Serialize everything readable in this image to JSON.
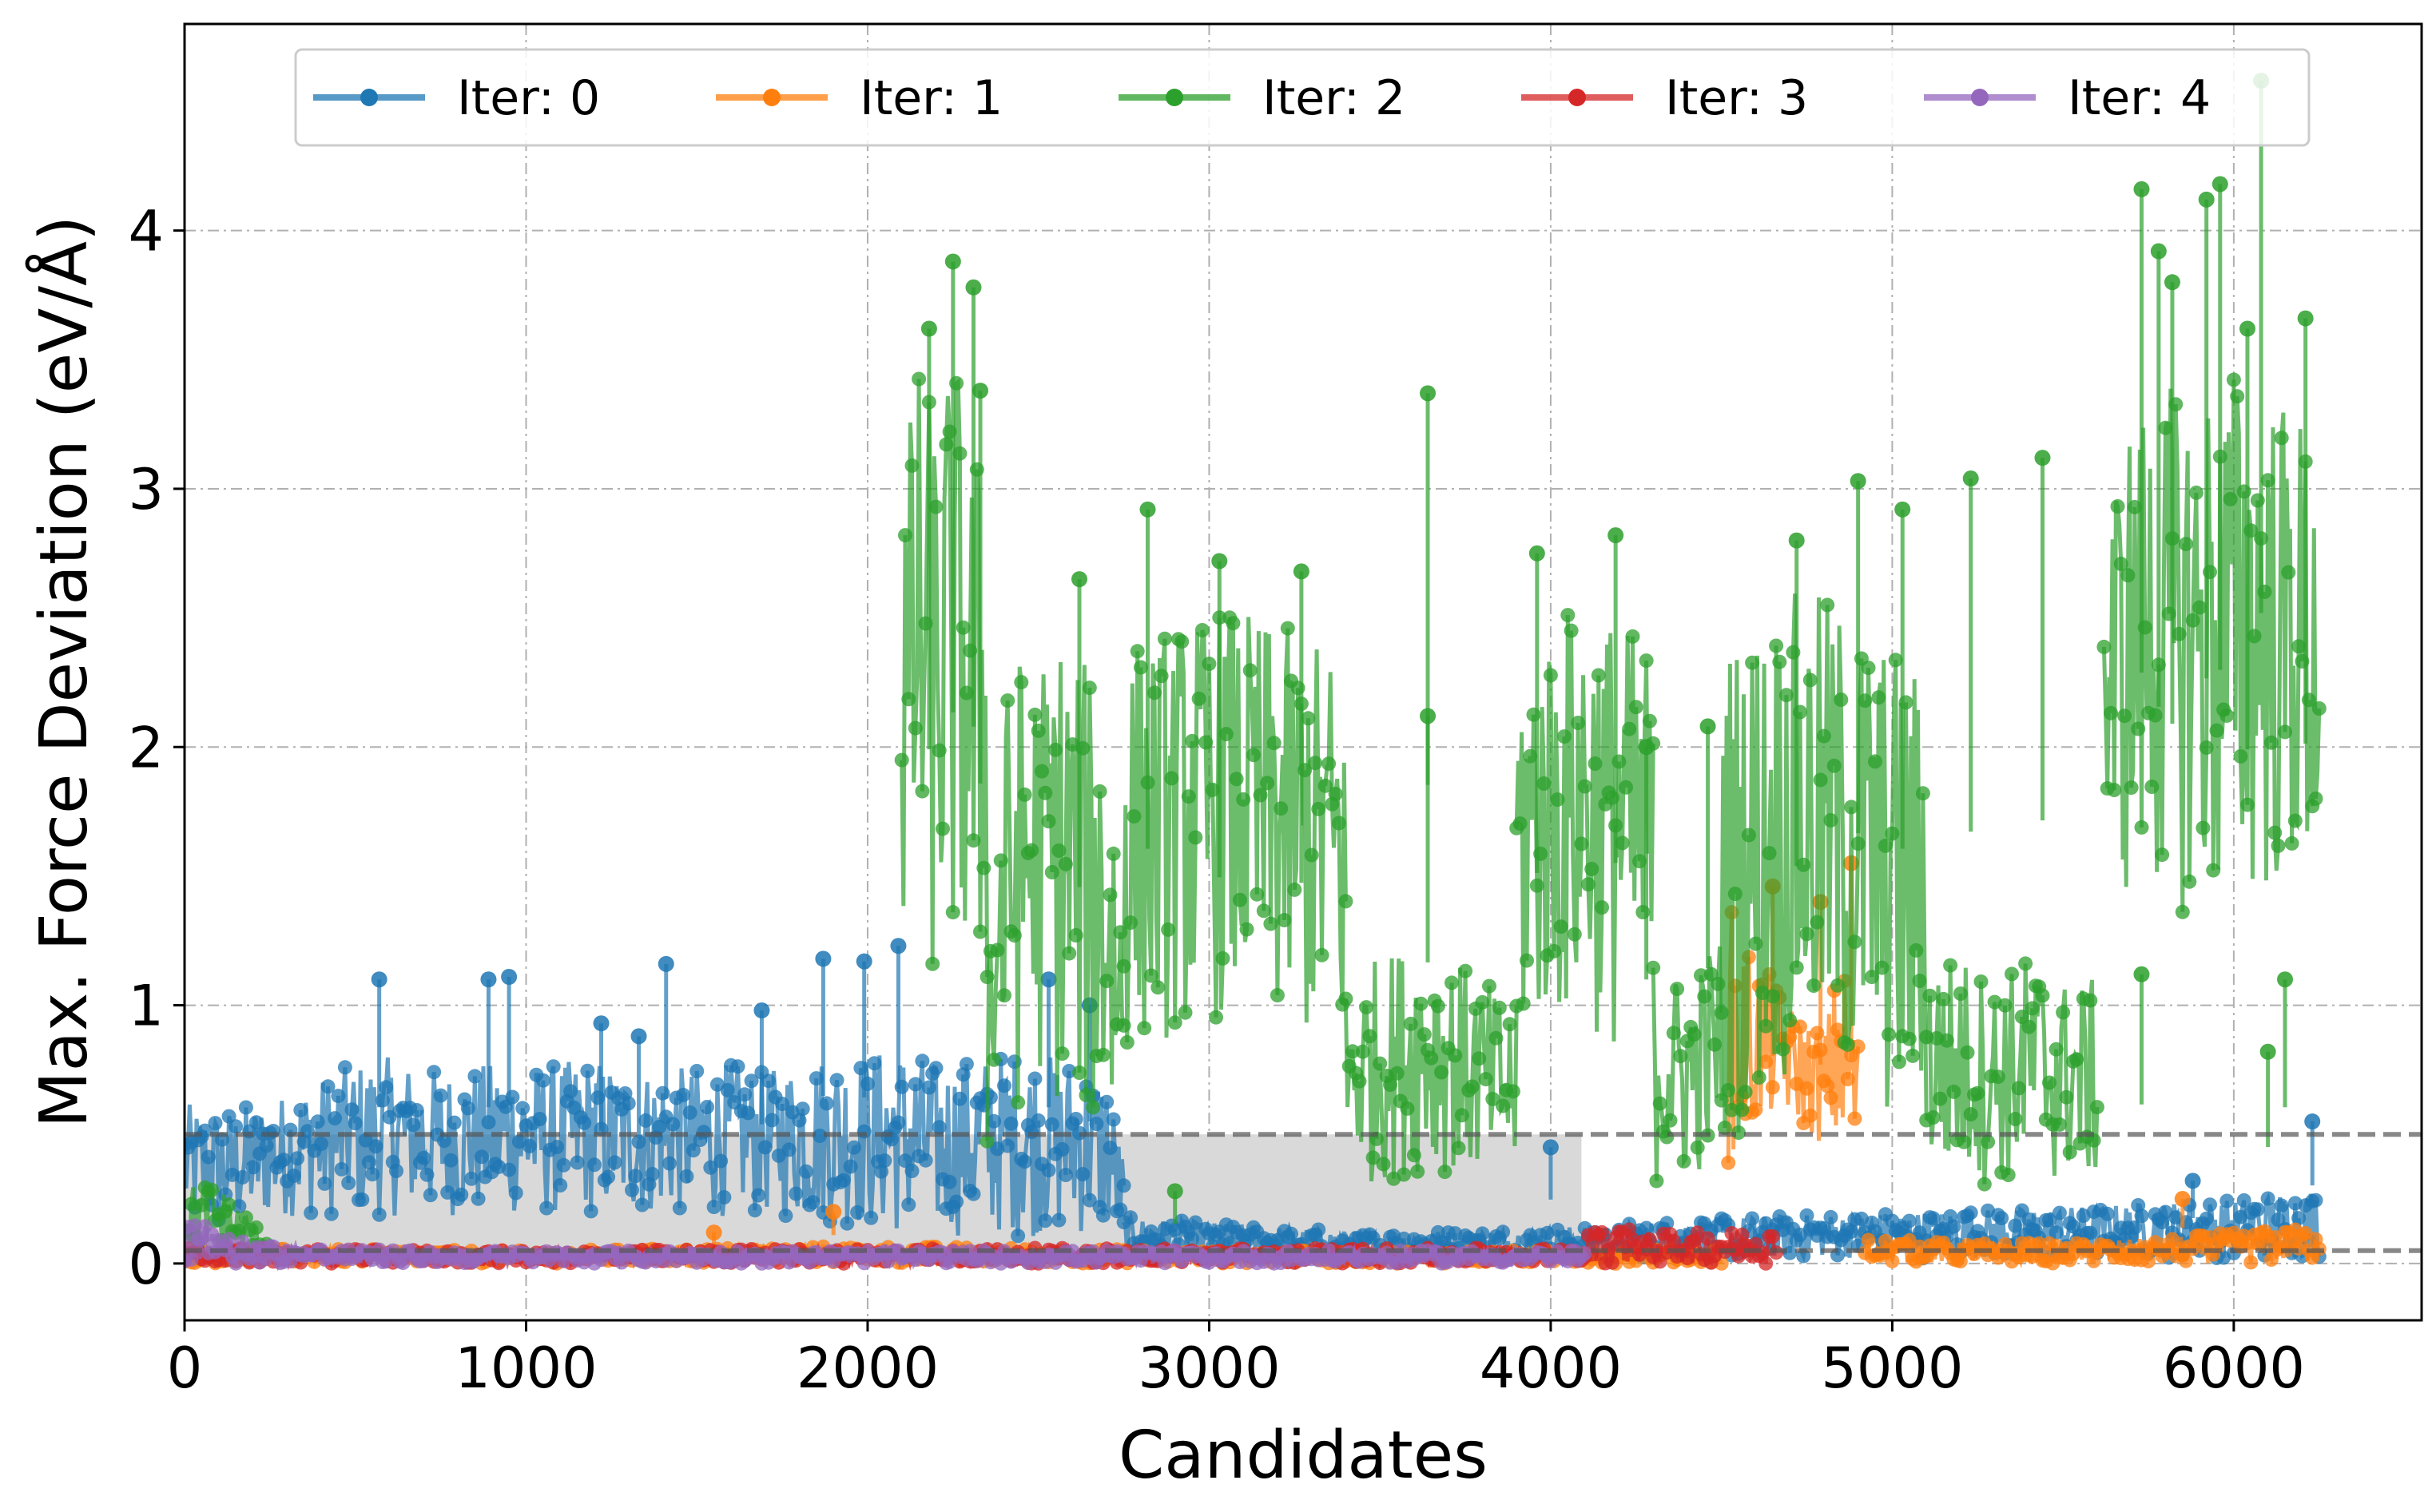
{
  "chart_data": {
    "type": "line",
    "title": "",
    "xlabel": "Candidates",
    "ylabel": "Max. Force Deviation (eV/Å)",
    "xlim": [
      0,
      6550
    ],
    "ylim": [
      -0.22,
      4.8
    ],
    "xticks": [
      0,
      1000,
      2000,
      3000,
      4000,
      5000,
      6000
    ],
    "yticks": [
      0,
      1,
      2,
      3,
      4
    ],
    "grid": true,
    "legend": {
      "placement": "top-center",
      "columns": 5
    },
    "thresholds": [
      {
        "value": 0.5,
        "style": "dashed"
      },
      {
        "value": 0.05,
        "style": "dashed"
      }
    ],
    "series": [
      {
        "name": "Iter: 0",
        "color": "#1f77b4",
        "segments": [
          {
            "x": [
              0,
              100,
              200,
              300,
              400,
              500,
              600,
              700,
              800,
              900,
              1000,
              1100,
              1200,
              1300,
              1400,
              1500,
              1600,
              1700,
              1800,
              1900,
              2000,
              2100,
              2200,
              2300,
              2400,
              2500,
              2600,
              2700,
              2750
            ],
            "high": [
              0.62,
              0.6,
              0.62,
              0.66,
              0.72,
              0.78,
              0.8,
              0.76,
              0.75,
              0.78,
              0.76,
              0.78,
              0.8,
              0.74,
              0.76,
              0.76,
              0.78,
              0.74,
              0.8,
              0.82,
              0.82,
              0.85,
              0.78,
              0.8,
              0.82,
              0.82,
              0.8,
              0.75,
              0.4
            ],
            "low": [
              0.12,
              0.1,
              0.15,
              0.18,
              0.18,
              0.18,
              0.18,
              0.18,
              0.18,
              0.18,
              0.18,
              0.18,
              0.18,
              0.18,
              0.18,
              0.18,
              0.18,
              0.18,
              0.15,
              0.15,
              0.12,
              0.1,
              0.1,
              0.1,
              0.1,
              0.1,
              0.1,
              0.1,
              0.08
            ]
          },
          {
            "x": [
              2750,
              3000,
              3500,
              4000,
              4500,
              5000,
              5500,
              6000,
              6250
            ],
            "high": [
              0.18,
              0.16,
              0.12,
              0.14,
              0.18,
              0.2,
              0.22,
              0.25,
              0.3
            ],
            "low": [
              0.03,
              0.02,
              0.02,
              0.02,
              0.02,
              0.02,
              0.02,
              0.02,
              0.02
            ]
          }
        ],
        "spikes": [
          {
            "x": 570,
            "y": 1.1
          },
          {
            "x": 890,
            "y": 1.1
          },
          {
            "x": 950,
            "y": 1.11
          },
          {
            "x": 1410,
            "y": 1.16
          },
          {
            "x": 1690,
            "y": 0.98
          },
          {
            "x": 1870,
            "y": 1.18
          },
          {
            "x": 1990,
            "y": 1.17
          },
          {
            "x": 2090,
            "y": 1.23
          },
          {
            "x": 2530,
            "y": 1.1
          },
          {
            "x": 2650,
            "y": 1.0
          },
          {
            "x": 1220,
            "y": 0.93
          },
          {
            "x": 1330,
            "y": 0.88
          },
          {
            "x": 4000,
            "y": 0.45
          },
          {
            "x": 6230,
            "y": 0.55
          },
          {
            "x": 5880,
            "y": 0.32
          }
        ]
      },
      {
        "name": "Iter: 1",
        "color": "#ff7f0e",
        "segments": [
          {
            "x": [
              0,
              1000,
              2000,
              3000,
              4000,
              4500
            ],
            "high": [
              0.06,
              0.05,
              0.07,
              0.05,
              0.05,
              0.06
            ],
            "low": [
              0.0,
              0.0,
              0.0,
              0.0,
              0.0,
              0.0
            ]
          },
          {
            "x": [
              4520,
              4560,
              4600,
              4650,
              4700,
              4750,
              4800,
              4850,
              4900
            ],
            "high": [
              1.4,
              1.3,
              1.2,
              1.1,
              1.0,
              0.95,
              0.9,
              1.2,
              0.9
            ],
            "low": [
              0.3,
              0.4,
              0.5,
              0.55,
              0.55,
              0.5,
              0.45,
              0.4,
              0.35
            ]
          },
          {
            "x": [
              4920,
              5200,
              5500,
              5800,
              6000,
              6250
            ],
            "high": [
              0.1,
              0.08,
              0.08,
              0.1,
              0.12,
              0.14
            ],
            "low": [
              0.0,
              0.0,
              0.0,
              0.0,
              0.0,
              0.0
            ]
          }
        ],
        "spikes": [
          {
            "x": 1550,
            "y": 0.12
          },
          {
            "x": 1900,
            "y": 0.2
          },
          {
            "x": 4650,
            "y": 1.46
          },
          {
            "x": 4790,
            "y": 1.4
          },
          {
            "x": 4880,
            "y": 1.55
          },
          {
            "x": 5850,
            "y": 0.25
          }
        ]
      },
      {
        "name": "Iter: 2",
        "color": "#2ca02c",
        "segments": [
          {
            "x": [
              0,
              60,
              120,
              180,
              240
            ],
            "high": [
              0.3,
              0.32,
              0.28,
              0.2,
              0.1
            ],
            "low": [
              0.05,
              0.05,
              0.04,
              0.03,
              0.03
            ]
          },
          {
            "x": [
              2100,
              2150,
              2200,
              2250,
              2300,
              2350
            ],
            "high": [
              3.1,
              3.5,
              3.3,
              3.6,
              3.2,
              3.1
            ],
            "low": [
              1.1,
              1.2,
              1.0,
              1.1,
              1.0,
              0.9
            ]
          },
          {
            "x": [
              2350,
              2400,
              2450,
              2500,
              2550,
              2600,
              2650,
              2700,
              2750
            ],
            "high": [
              1.4,
              2.2,
              2.4,
              2.3,
              2.5,
              2.4,
              2.3,
              2.2,
              1.5
            ],
            "low": [
              0.3,
              0.5,
              0.6,
              0.7,
              0.6,
              0.6,
              0.5,
              0.4,
              0.3
            ]
          },
          {
            "x": [
              2750,
              2850,
              2950,
              3050,
              3150,
              3250,
              3350,
              3400
            ],
            "high": [
              2.4,
              2.45,
              2.5,
              2.55,
              2.5,
              2.45,
              2.4,
              2.3
            ],
            "low": [
              0.8,
              0.85,
              0.9,
              0.95,
              0.9,
              0.85,
              0.8,
              0.7
            ]
          },
          {
            "x": [
              3400,
              3500,
              3600,
              3700,
              3800,
              3900
            ],
            "high": [
              1.1,
              1.2,
              1.25,
              1.2,
              1.1,
              1.0
            ],
            "low": [
              0.3,
              0.3,
              0.35,
              0.35,
              0.3,
              0.3
            ]
          },
          {
            "x": [
              3900,
              4000,
              4100,
              4200,
              4300
            ],
            "high": [
              2.4,
              2.5,
              2.6,
              2.5,
              2.4
            ],
            "low": [
              0.8,
              0.9,
              0.9,
              0.8,
              0.7
            ]
          },
          {
            "x": [
              4300,
              4400,
              4500
            ],
            "high": [
              1.2,
              1.1,
              1.3
            ],
            "low": [
              0.3,
              0.3,
              0.4
            ]
          },
          {
            "x": [
              4500,
              4600,
              4700,
              4800,
              4900,
              5000,
              5100
            ],
            "high": [
              2.4,
              2.5,
              2.6,
              2.6,
              2.5,
              2.4,
              2.3
            ],
            "low": [
              0.4,
              0.6,
              0.7,
              0.7,
              0.6,
              0.5,
              0.4
            ]
          },
          {
            "x": [
              5100,
              5200,
              5300,
              5400,
              5500,
              5600
            ],
            "high": [
              1.2,
              1.2,
              1.1,
              1.2,
              1.1,
              1.1
            ],
            "low": [
              0.3,
              0.3,
              0.3,
              0.3,
              0.3,
              0.3
            ]
          },
          {
            "x": [
              5620,
              5700,
              5800,
              5900,
              6000,
              6100,
              6200,
              6250
            ],
            "high": [
              3.0,
              3.3,
              3.4,
              3.4,
              3.5,
              3.4,
              3.3,
              3.2
            ],
            "low": [
              1.3,
              1.4,
              1.4,
              1.3,
              1.3,
              1.4,
              1.4,
              1.3
            ]
          }
        ],
        "spikes": [
          {
            "x": 2250,
            "y": 3.88
          },
          {
            "x": 2180,
            "y": 3.62
          },
          {
            "x": 2310,
            "y": 3.78
          },
          {
            "x": 2330,
            "y": 3.38
          },
          {
            "x": 2620,
            "y": 2.65
          },
          {
            "x": 2820,
            "y": 2.92
          },
          {
            "x": 3030,
            "y": 2.72
          },
          {
            "x": 3270,
            "y": 2.68
          },
          {
            "x": 3640,
            "y": 3.37
          },
          {
            "x": 3960,
            "y": 2.75
          },
          {
            "x": 4190,
            "y": 2.82
          },
          {
            "x": 4720,
            "y": 2.8
          },
          {
            "x": 4900,
            "y": 3.03
          },
          {
            "x": 5030,
            "y": 2.92
          },
          {
            "x": 5230,
            "y": 3.04
          },
          {
            "x": 5440,
            "y": 3.12
          },
          {
            "x": 5730,
            "y": 4.16
          },
          {
            "x": 5920,
            "y": 4.12
          },
          {
            "x": 5960,
            "y": 4.18
          },
          {
            "x": 6080,
            "y": 4.58
          },
          {
            "x": 6040,
            "y": 3.62
          },
          {
            "x": 5780,
            "y": 3.92
          },
          {
            "x": 5820,
            "y": 3.8
          },
          {
            "x": 6210,
            "y": 3.66
          },
          {
            "x": 6150,
            "y": 1.1
          },
          {
            "x": 6100,
            "y": 0.82
          },
          {
            "x": 5730,
            "y": 1.12
          },
          {
            "x": 2900,
            "y": 0.28
          },
          {
            "x": 3640,
            "y": 2.12
          },
          {
            "x": 4280,
            "y": 2.0
          },
          {
            "x": 4460,
            "y": 2.08
          }
        ]
      },
      {
        "name": "Iter: 3",
        "color": "#d62728",
        "segments": [
          {
            "x": [
              0,
              1000,
              2000,
              3000,
              4100
            ],
            "high": [
              0.06,
              0.05,
              0.06,
              0.06,
              0.06
            ],
            "low": [
              0.0,
              0.0,
              0.0,
              0.0,
              0.0
            ]
          },
          {
            "x": [
              4100,
              4200,
              4300,
              4400,
              4500,
              4600,
              4660
            ],
            "high": [
              0.12,
              0.14,
              0.12,
              0.12,
              0.12,
              0.13,
              0.12
            ],
            "low": [
              0.0,
              0.0,
              0.0,
              0.0,
              0.0,
              0.0,
              0.0
            ]
          }
        ],
        "spikes": []
      },
      {
        "name": "Iter: 4",
        "color": "#9467bd",
        "segments": [
          {
            "x": [
              0,
              50,
              100,
              200,
              400,
              700,
              1000,
              2000,
              3000,
              4100
            ],
            "high": [
              0.2,
              0.16,
              0.12,
              0.08,
              0.06,
              0.05,
              0.05,
              0.05,
              0.05,
              0.05
            ],
            "low": [
              0.0,
              0.0,
              0.0,
              0.0,
              0.0,
              0.0,
              0.0,
              0.0,
              0.0,
              0.0
            ]
          }
        ],
        "spikes": []
      }
    ]
  }
}
